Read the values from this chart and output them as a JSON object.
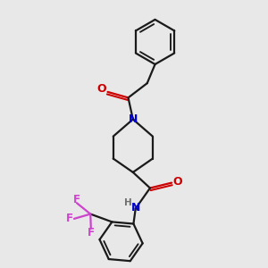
{
  "bg_color": "#e8e8e8",
  "bond_color": "#1a1a1a",
  "O_color": "#cc0000",
  "N_color": "#0000cc",
  "F_color": "#cc44cc",
  "H_color": "#707070",
  "bond_width": 1.6,
  "figsize": [
    3.0,
    3.0
  ],
  "dpi": 100,
  "xlim": [
    0,
    10
  ],
  "ylim": [
    0,
    10
  ]
}
